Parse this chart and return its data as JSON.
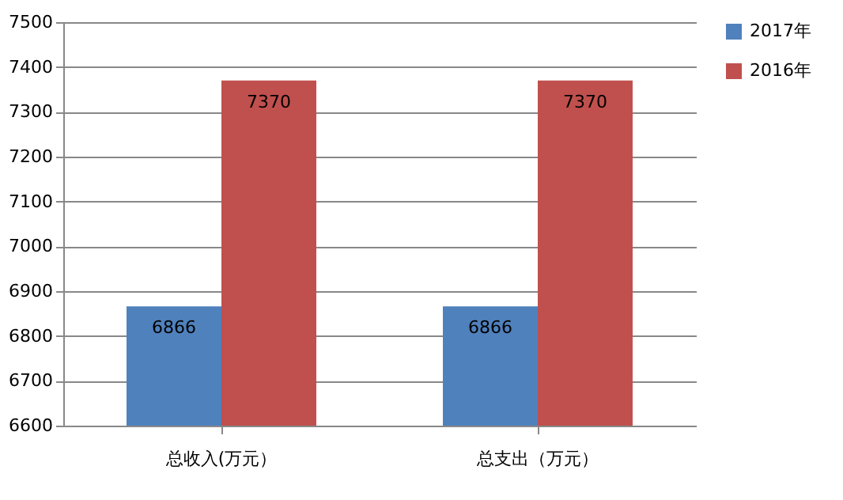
{
  "chart_data": {
    "type": "bar",
    "categories": [
      "总收入(万元）",
      "总支出（万元）"
    ],
    "series": [
      {
        "name": "2017年",
        "color": "#4f81bd",
        "values": [
          6866,
          6866
        ]
      },
      {
        "name": "2016年",
        "color": "#c0504d",
        "values": [
          7370,
          7370
        ]
      }
    ],
    "ylim": [
      6600,
      7500
    ],
    "yticks": [
      6600,
      6700,
      6800,
      6900,
      7000,
      7100,
      7200,
      7300,
      7400,
      7500
    ],
    "grid": "y",
    "legend": "right",
    "data_labels": true
  }
}
